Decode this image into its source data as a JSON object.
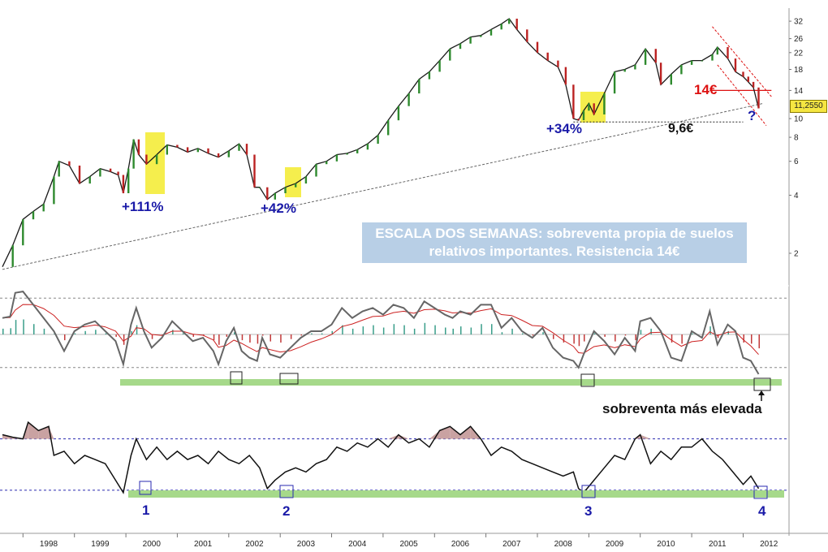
{
  "note": "ESCALA DOS SEMANAS: sobreventa propia de suelos relativos importantes. Resistencia 14€",
  "last_price_label": "11,2550",
  "bottom_annotation": "sobreventa más elevada",
  "chart_data": [
    {
      "type": "line",
      "panel": "price",
      "scale": "log",
      "ylim": [
        1.6,
        36
      ],
      "yticks": [
        2,
        4,
        6,
        8,
        10,
        14,
        18,
        22,
        26,
        32
      ],
      "x_labels": [
        "1998",
        "1999",
        "2000",
        "2001",
        "2002",
        "2003",
        "2004",
        "2005",
        "2006",
        "2007",
        "2008",
        "2009",
        "2010",
        "2011",
        "2012"
      ],
      "xlim": [
        1997.6,
        2012.75
      ],
      "series": [
        {
          "values_x": [
            1997.6,
            1997.8,
            1998.0,
            1998.2,
            1998.4,
            1998.6,
            1998.7,
            1998.9,
            1999.1,
            1999.3,
            1999.5,
            1999.7,
            1999.85,
            1999.95,
            2000.05,
            2000.15,
            2000.25,
            2000.4,
            2000.6,
            2000.8,
            2001.0,
            2001.2,
            2001.4,
            2001.6,
            2001.8,
            2002.0,
            2002.2,
            2002.35,
            2002.5,
            2002.6,
            2002.75,
            2002.9,
            2003.1,
            2003.3,
            2003.5,
            2003.7,
            2003.9,
            2004.1,
            2004.3,
            2004.5,
            2004.7,
            2004.9,
            2005.1,
            2005.3,
            2005.5,
            2005.7,
            2005.9,
            2006.1,
            2006.3,
            2006.5,
            2006.7,
            2006.9,
            2007.1,
            2007.3,
            2007.45,
            2007.6,
            2007.8,
            2008.0,
            2008.2,
            2008.4,
            2008.55,
            2008.7,
            2008.8,
            2008.9,
            2009.0,
            2009.1,
            2009.3,
            2009.5,
            2009.7,
            2009.9,
            2010.1,
            2010.3,
            2010.4,
            2010.6,
            2010.8,
            2011.0,
            2011.2,
            2011.4,
            2011.5,
            2011.7,
            2011.85,
            2012.0,
            2012.1,
            2012.2,
            2012.3
          ],
          "values": [
            1.7,
            2.2,
            3.0,
            3.3,
            3.6,
            5.0,
            6.0,
            5.7,
            4.6,
            5.0,
            5.5,
            5.3,
            5.1,
            4.1,
            5.5,
            7.8,
            6.5,
            5.8,
            6.5,
            7.3,
            7.1,
            6.7,
            7.0,
            6.6,
            6.3,
            6.8,
            7.4,
            6.5,
            4.4,
            4.4,
            3.8,
            4.1,
            4.4,
            4.6,
            5.0,
            5.8,
            6.0,
            6.5,
            6.6,
            6.9,
            7.4,
            8.2,
            9.8,
            11.6,
            13.5,
            16.0,
            17.5,
            20.0,
            23.0,
            24.5,
            26.5,
            27.0,
            29.0,
            31.0,
            33.0,
            29.0,
            25.0,
            22.0,
            20.0,
            18.5,
            15.0,
            10.0,
            9.8,
            11.0,
            12.0,
            10.5,
            13.5,
            17.5,
            18.0,
            19.0,
            23.0,
            19.5,
            15.0,
            17.0,
            19.0,
            20.0,
            20.0,
            21.5,
            23.5,
            20.5,
            17.5,
            16.5,
            15.5,
            14.5,
            11.3
          ]
        }
      ],
      "annotations": [
        "+111%",
        "+42%",
        "+34%",
        "14€",
        "9,6€",
        "?"
      ]
    },
    {
      "type": "line",
      "panel": "oscillator-1",
      "series": [
        {
          "values_x": [
            1997.6,
            1997.75,
            1997.85,
            1998.0,
            1998.2,
            1998.4,
            1998.6,
            1998.8,
            1999.0,
            1999.2,
            1999.4,
            1999.6,
            1999.8,
            1999.95,
            2000.1,
            2000.2,
            2000.35,
            2000.5,
            2000.7,
            2000.9,
            2001.1,
            2001.3,
            2001.5,
            2001.7,
            2001.8,
            2001.95,
            2002.1,
            2002.25,
            2002.4,
            2002.55,
            2002.65,
            2002.8,
            2003.0,
            2003.2,
            2003.4,
            2003.6,
            2003.8,
            2004.0,
            2004.2,
            2004.4,
            2004.6,
            2004.8,
            2005.0,
            2005.2,
            2005.4,
            2005.6,
            2005.8,
            2006.0,
            2006.2,
            2006.35,
            2006.5,
            2006.7,
            2006.9,
            2007.1,
            2007.3,
            2007.5,
            2007.7,
            2007.9,
            2008.1,
            2008.3,
            2008.5,
            2008.7,
            2008.8,
            2008.9,
            2009.1,
            2009.3,
            2009.5,
            2009.7,
            2009.9,
            2010.0,
            2010.2,
            2010.4,
            2010.6,
            2010.8,
            2011.0,
            2011.2,
            2011.35,
            2011.5,
            2011.7,
            2011.85,
            2012.0,
            2012.15,
            2012.3
          ],
          "values": [
            40,
            42,
            78,
            80,
            60,
            40,
            20,
            -10,
            20,
            30,
            35,
            20,
            5,
            -30,
            30,
            55,
            20,
            -5,
            10,
            35,
            20,
            5,
            10,
            -10,
            -30,
            5,
            25,
            -10,
            -20,
            -25,
            10,
            -15,
            -20,
            -5,
            10,
            20,
            20,
            30,
            55,
            40,
            50,
            55,
            45,
            60,
            55,
            40,
            65,
            55,
            45,
            40,
            50,
            45,
            60,
            60,
            25,
            40,
            20,
            10,
            25,
            -5,
            -20,
            -25,
            -35,
            -15,
            20,
            5,
            -15,
            10,
            -10,
            35,
            40,
            20,
            -20,
            -25,
            20,
            10,
            50,
            0,
            30,
            20,
            -20,
            -25,
            -45
          ]
        }
      ]
    },
    {
      "type": "line",
      "panel": "oscillator-2",
      "x_points_labels": [
        "1",
        "2",
        "3",
        "4"
      ],
      "series": [
        {
          "values_x": [
            1997.6,
            1997.8,
            1998.0,
            1998.1,
            1998.3,
            1998.5,
            1998.6,
            1998.8,
            1999.0,
            1999.2,
            1999.4,
            1999.6,
            1999.8,
            1999.95,
            2000.1,
            2000.2,
            2000.4,
            2000.6,
            2000.8,
            2001.0,
            2001.2,
            2001.4,
            2001.6,
            2001.8,
            2002.0,
            2002.2,
            2002.4,
            2002.6,
            2002.75,
            2002.9,
            2003.1,
            2003.3,
            2003.5,
            2003.7,
            2003.9,
            2004.1,
            2004.3,
            2004.5,
            2004.7,
            2004.9,
            2005.1,
            2005.3,
            2005.5,
            2005.7,
            2005.9,
            2006.1,
            2006.3,
            2006.5,
            2006.7,
            2006.9,
            2007.1,
            2007.3,
            2007.5,
            2007.7,
            2007.9,
            2008.1,
            2008.3,
            2008.5,
            2008.7,
            2008.8,
            2008.9,
            2009.1,
            2009.3,
            2009.5,
            2009.7,
            2009.9,
            2010.0,
            2010.2,
            2010.4,
            2010.6,
            2010.8,
            2011.0,
            2011.2,
            2011.4,
            2011.6,
            2011.8,
            2012.0,
            2012.15,
            2012.3
          ],
          "values": [
            75,
            72,
            70,
            90,
            80,
            85,
            50,
            55,
            40,
            50,
            45,
            40,
            20,
            5,
            50,
            70,
            45,
            60,
            45,
            55,
            45,
            50,
            40,
            55,
            45,
            40,
            50,
            35,
            10,
            20,
            30,
            35,
            30,
            40,
            45,
            60,
            55,
            65,
            60,
            70,
            60,
            75,
            65,
            70,
            60,
            80,
            85,
            75,
            85,
            70,
            50,
            60,
            55,
            45,
            40,
            35,
            30,
            25,
            30,
            10,
            5,
            20,
            35,
            50,
            45,
            70,
            75,
            40,
            55,
            45,
            60,
            60,
            70,
            55,
            45,
            30,
            15,
            25,
            10
          ]
        }
      ]
    }
  ]
}
